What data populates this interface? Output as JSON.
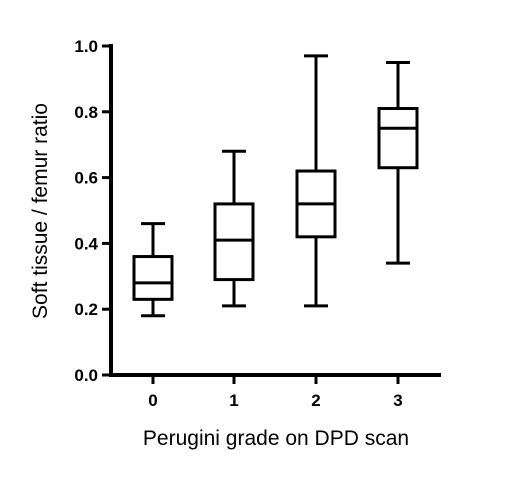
{
  "chart_data": {
    "type": "box",
    "title": "",
    "xlabel": "Perugini grade on DPD scan",
    "ylabel": "Soft tissue / femur ratio",
    "categories": [
      "0",
      "1",
      "2",
      "3"
    ],
    "ylim": [
      0.0,
      1.0
    ],
    "yticks": [
      "0.0",
      "0.2",
      "0.4",
      "0.6",
      "0.8",
      "1.0"
    ],
    "boxes": [
      {
        "category": "0",
        "min": 0.18,
        "q1": 0.23,
        "median": 0.28,
        "q3": 0.36,
        "max": 0.46
      },
      {
        "category": "1",
        "min": 0.21,
        "q1": 0.29,
        "median": 0.41,
        "q3": 0.52,
        "max": 0.68
      },
      {
        "category": "2",
        "min": 0.21,
        "q1": 0.42,
        "median": 0.52,
        "q3": 0.62,
        "max": 0.97
      },
      {
        "category": "3",
        "min": 0.34,
        "q1": 0.63,
        "median": 0.75,
        "q3": 0.81,
        "max": 0.95
      }
    ],
    "grid": false,
    "legend": "none"
  }
}
